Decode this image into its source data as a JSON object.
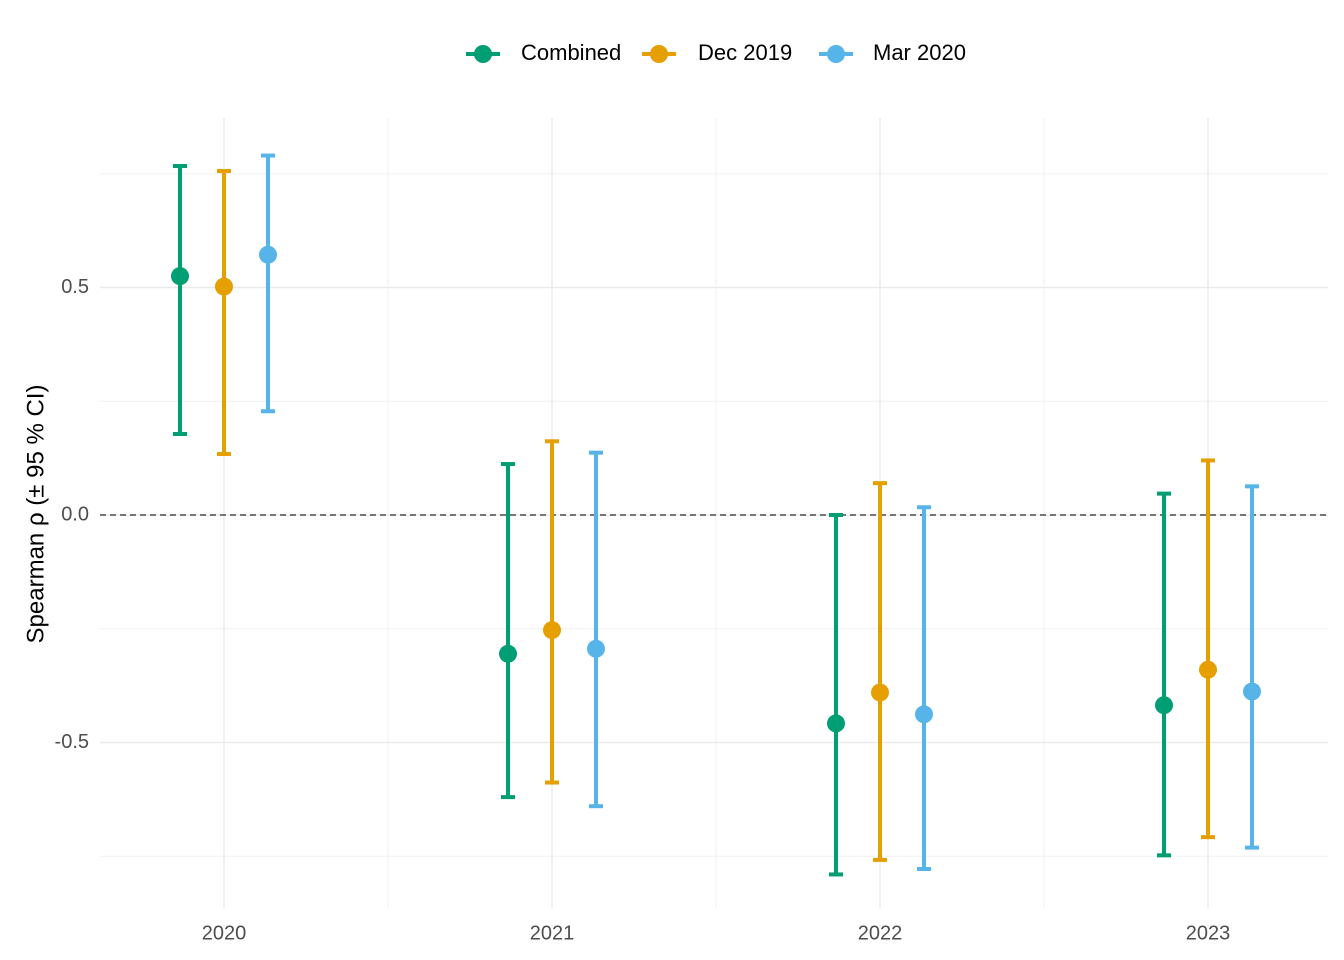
{
  "chart_data": {
    "type": "scatter",
    "subtype": "point-with-errorbars",
    "title": "",
    "xlabel": "",
    "ylabel": "Spearman ρ (± 95 % CI)",
    "categories": [
      "2020",
      "2021",
      "2022",
      "2023"
    ],
    "ylim": [
      -0.86,
      0.88
    ],
    "yticks": [
      -0.5,
      0.0,
      0.5
    ],
    "ytick_labels": [
      "-0.5",
      "0.0",
      "0.5"
    ],
    "grid": true,
    "reference_line": {
      "y": 0,
      "style": "dashed",
      "color": "#4d4d4d"
    },
    "legend": {
      "position": "top"
    },
    "series": [
      {
        "name": "Combined",
        "color": "#009E73",
        "points": [
          {
            "x": "2020",
            "y": 0.525,
            "low": 0.178,
            "high": 0.767
          },
          {
            "x": "2021",
            "y": -0.305,
            "low": -0.62,
            "high": 0.112
          },
          {
            "x": "2022",
            "y": -0.458,
            "low": -0.79,
            "high": 0.0
          },
          {
            "x": "2023",
            "y": -0.418,
            "low": -0.748,
            "high": 0.047
          }
        ]
      },
      {
        "name": "Dec 2019",
        "color": "#E69F00",
        "points": [
          {
            "x": "2020",
            "y": 0.502,
            "low": 0.134,
            "high": 0.756
          },
          {
            "x": "2021",
            "y": -0.253,
            "low": -0.588,
            "high": 0.162
          },
          {
            "x": "2022",
            "y": -0.39,
            "low": -0.758,
            "high": 0.07
          },
          {
            "x": "2023",
            "y": -0.34,
            "low": -0.708,
            "high": 0.12
          }
        ]
      },
      {
        "name": "Mar 2020",
        "color": "#56B4E9",
        "points": [
          {
            "x": "2020",
            "y": 0.572,
            "low": 0.228,
            "high": 0.79
          },
          {
            "x": "2021",
            "y": -0.294,
            "low": -0.64,
            "high": 0.137
          },
          {
            "x": "2022",
            "y": -0.438,
            "low": -0.778,
            "high": 0.017
          },
          {
            "x": "2023",
            "y": -0.388,
            "low": -0.731,
            "high": 0.063
          }
        ]
      }
    ]
  }
}
